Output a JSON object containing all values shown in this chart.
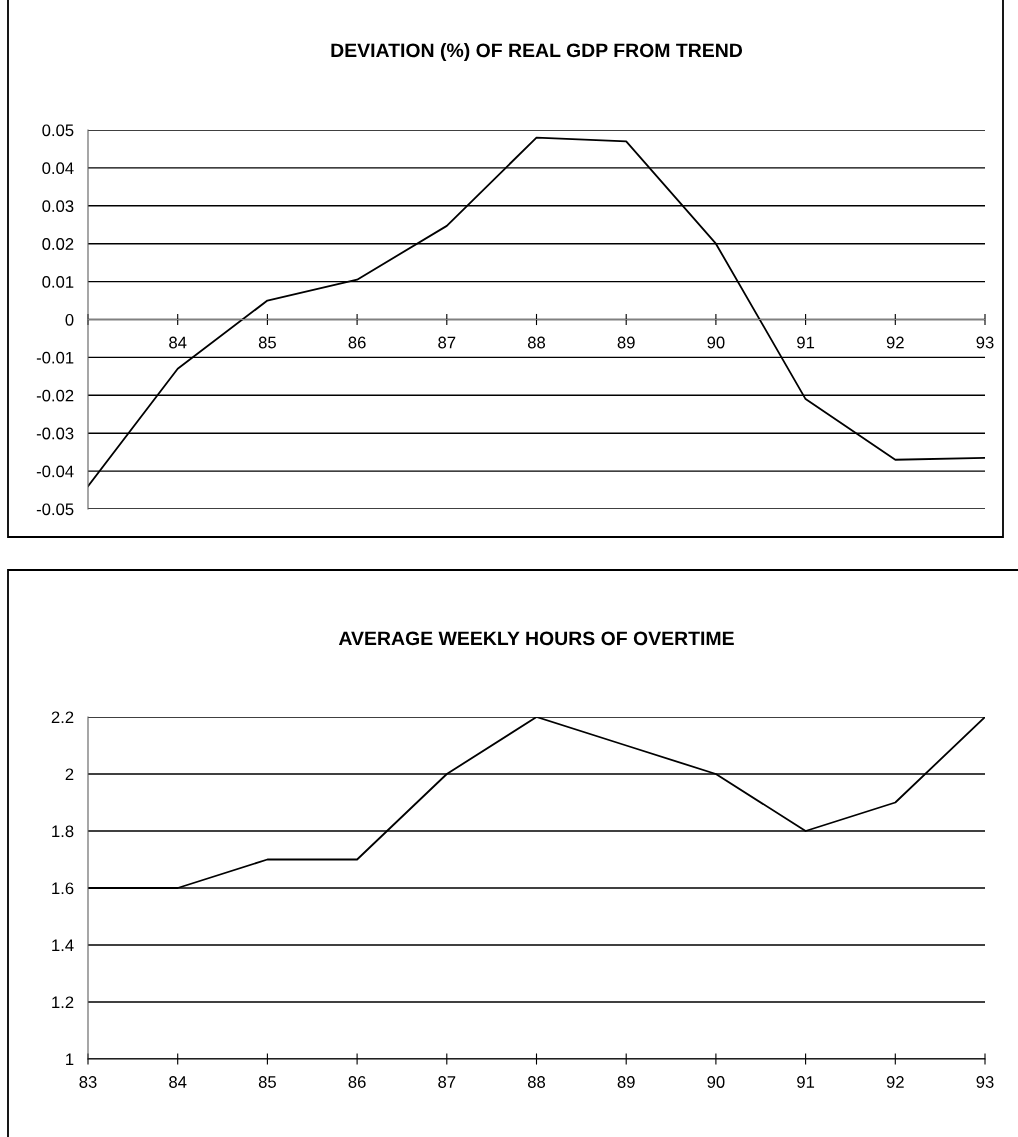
{
  "chart_data": [
    {
      "type": "line",
      "title": "DEVIATION (%) OF REAL GDP FROM TREND",
      "x": [
        83,
        84,
        85,
        86,
        87,
        88,
        89,
        90,
        91,
        92,
        93
      ],
      "series": [
        {
          "color": "#000000",
          "values": [
            -0.044,
            -0.013,
            0.005,
            0.0105,
            0.0247,
            0.048,
            0.047,
            0.02,
            -0.021,
            -0.037,
            -0.0365
          ]
        }
      ],
      "xlim": [
        83,
        93
      ],
      "xticks": [
        {
          "value": 83,
          "label": null
        },
        84,
        85,
        86,
        87,
        88,
        89,
        90,
        91,
        92,
        93
      ],
      "ylim": [
        -0.05,
        0.05
      ],
      "yticks": [
        -0.05,
        -0.04,
        -0.03,
        -0.02,
        -0.01,
        0,
        0.01,
        0.02,
        0.03,
        0.04,
        0.05
      ],
      "grid": "y"
    },
    {
      "type": "line",
      "title": "AVERAGE WEEKLY HOURS OF OVERTIME",
      "x": [
        83,
        84,
        85,
        86,
        87,
        88,
        89,
        90,
        91,
        92,
        93
      ],
      "series": [
        {
          "color": "#000000",
          "values": [
            1.6,
            1.6,
            1.7,
            1.7,
            2.0,
            2.2,
            2.1,
            2.0,
            1.8,
            1.9,
            2.2
          ]
        }
      ],
      "xlim": [
        83,
        93
      ],
      "xticks": [
        83,
        84,
        85,
        86,
        87,
        88,
        89,
        90,
        91,
        92,
        93
      ],
      "ylim": [
        1,
        2.2
      ],
      "yticks": [
        1,
        1.2,
        1.4,
        1.6,
        1.8,
        2,
        2.2
      ],
      "grid": "y"
    }
  ]
}
